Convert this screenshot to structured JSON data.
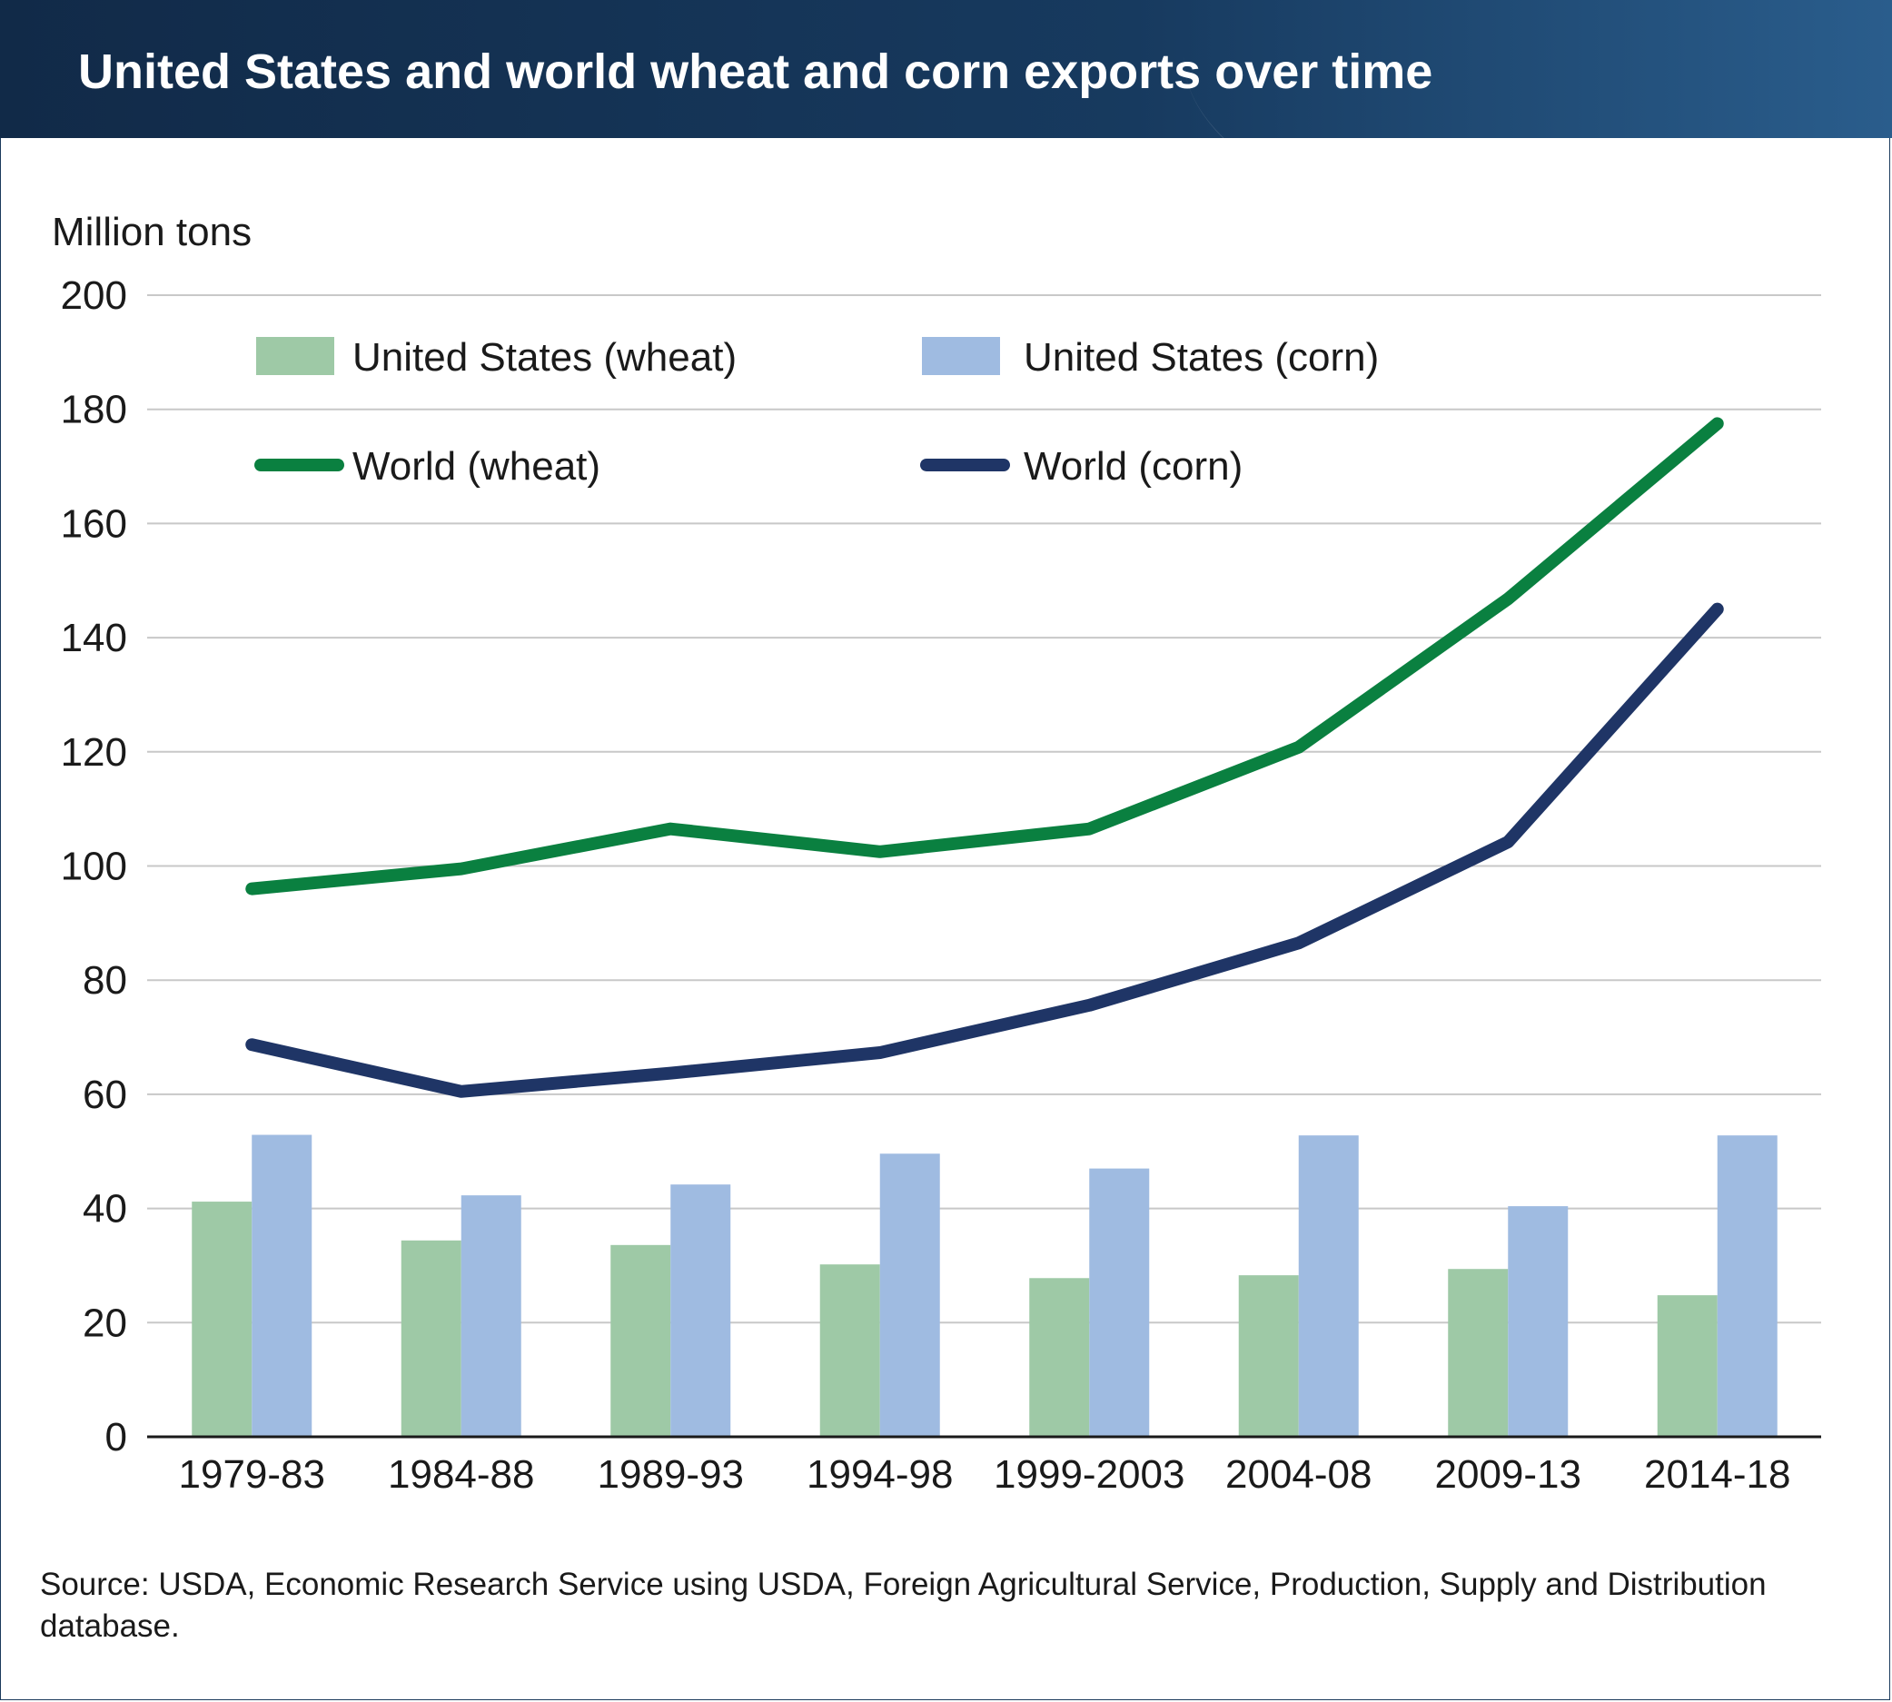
{
  "header": {
    "title": "United States and world wheat and corn exports over time"
  },
  "footer": {
    "source": "Source: USDA, Economic Research Service using USDA, Foreign Agricultural Service, Production, Supply and Distribution database."
  },
  "colors": {
    "us_wheat": "#9ec9a6",
    "us_corn": "#9fbbe1",
    "world_wheat": "#0a8040",
    "world_corn": "#1f3566",
    "gridline": "#c8c8c8",
    "axis": "#1a1a1a"
  },
  "chart_data": {
    "type": "bar",
    "ylabel": "Million tons",
    "ylim": [
      0,
      200
    ],
    "yticks": [
      0,
      20,
      40,
      60,
      80,
      100,
      120,
      140,
      160,
      180,
      200
    ],
    "grid": true,
    "legend_position": "top-left",
    "categories": [
      "1979-83",
      "1984-88",
      "1989-93",
      "1994-98",
      "1999-2003",
      "2004-08",
      "2009-13",
      "2014-18"
    ],
    "series": [
      {
        "name": "United States (wheat)",
        "kind": "bar",
        "color_key": "us_wheat",
        "values": [
          41.2,
          34.4,
          33.6,
          30.2,
          27.8,
          28.3,
          29.4,
          24.8
        ]
      },
      {
        "name": "United States (corn)",
        "kind": "bar",
        "color_key": "us_corn",
        "values": [
          52.9,
          42.3,
          44.2,
          49.6,
          47.0,
          52.8,
          40.4,
          52.8
        ]
      },
      {
        "name": "World (wheat)",
        "kind": "line",
        "color_key": "world_wheat",
        "values": [
          96,
          99.5,
          106.5,
          102.5,
          106.5,
          120.8,
          146.8,
          177.5
        ]
      },
      {
        "name": "World (corn)",
        "kind": "line",
        "color_key": "world_corn",
        "values": [
          68.7,
          60.5,
          63.7,
          67.3,
          75.6,
          86.5,
          104.2,
          145.0
        ]
      }
    ]
  }
}
